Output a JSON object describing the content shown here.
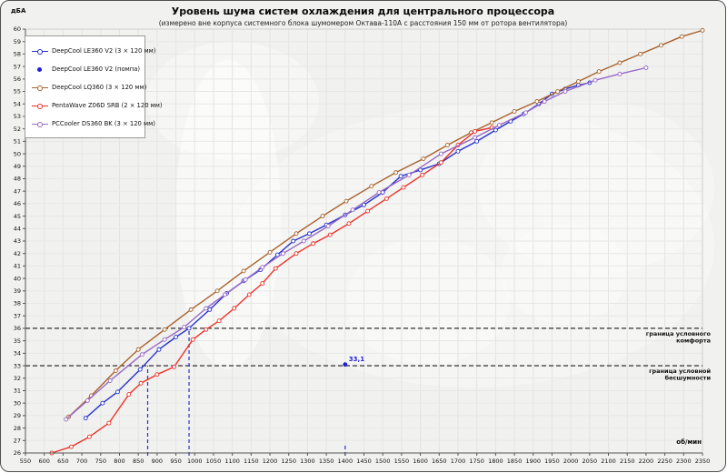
{
  "title": "Уровень шума систем охлаждения для центрального процессора",
  "subtitle": "(измерено вне корпуса системного блока шумомером Октава-110А с расстояния 150 мм от ротора вентилятора)",
  "y_unit": "дБА",
  "x_unit": "об/мин",
  "chart_data": {
    "type": "line",
    "title": "Уровень шума систем охлаждения для центрального процессора",
    "subtitle": "(измерено вне корпуса системного блока шумомером Октава-110А с расстояния 150 мм от ротора вентилятора)",
    "xlabel": "об/мин",
    "ylabel": "дБА",
    "xlim": [
      550,
      2350
    ],
    "xtick_step": 50,
    "ylim": [
      26,
      60
    ],
    "ytick_step": 1,
    "grid": true,
    "legend_position": "top-left",
    "series": [
      {
        "name": "DeepCool LE360 V2 (3 × 120 мм)",
        "type": "line",
        "marker": "circle-open",
        "color": "#2733cb",
        "points": [
          [
            710,
            28.8
          ],
          [
            755,
            30.0
          ],
          [
            795,
            30.9
          ],
          [
            855,
            32.7
          ],
          [
            905,
            34.3
          ],
          [
            950,
            35.3
          ],
          [
            985,
            36.0
          ],
          [
            1040,
            37.5
          ],
          [
            1085,
            38.8
          ],
          [
            1130,
            39.8
          ],
          [
            1175,
            40.7
          ],
          [
            1220,
            41.9
          ],
          [
            1262,
            43.0
          ],
          [
            1305,
            43.6
          ],
          [
            1350,
            44.3
          ],
          [
            1400,
            45.1
          ],
          [
            1450,
            45.9
          ],
          [
            1500,
            46.9
          ],
          [
            1548,
            48.2
          ],
          [
            1600,
            48.7
          ],
          [
            1650,
            49.2
          ],
          [
            1700,
            50.2
          ],
          [
            1750,
            51.0
          ],
          [
            1800,
            51.9
          ],
          [
            1840,
            52.6
          ],
          [
            1875,
            53.2
          ],
          [
            1915,
            54.0
          ],
          [
            1950,
            54.8
          ],
          [
            1985,
            55.2
          ],
          [
            2020,
            55.5
          ],
          [
            2050,
            55.7
          ]
        ]
      },
      {
        "name": "DeepCool LE360 V2 (помпа)",
        "type": "scatter",
        "marker": "dot",
        "color": "#1f1fd6",
        "points": [
          [
            1400,
            33.1
          ]
        ],
        "point_label": "33,1"
      },
      {
        "name": "DeepCool LQ360 (3 × 120 мм)",
        "type": "line",
        "marker": "circle-open",
        "color": "#a8622c",
        "points": [
          [
            665,
            28.9
          ],
          [
            725,
            30.6
          ],
          [
            790,
            32.6
          ],
          [
            850,
            34.3
          ],
          [
            920,
            35.9
          ],
          [
            990,
            37.5
          ],
          [
            1060,
            39.0
          ],
          [
            1130,
            40.6
          ],
          [
            1200,
            42.1
          ],
          [
            1270,
            43.6
          ],
          [
            1340,
            45.0
          ],
          [
            1403,
            46.2
          ],
          [
            1470,
            47.4
          ],
          [
            1535,
            48.5
          ],
          [
            1608,
            49.6
          ],
          [
            1672,
            50.7
          ],
          [
            1735,
            51.7
          ],
          [
            1790,
            52.5
          ],
          [
            1850,
            53.4
          ],
          [
            1910,
            54.2
          ],
          [
            1965,
            55.0
          ],
          [
            2020,
            55.8
          ],
          [
            2075,
            56.6
          ],
          [
            2130,
            57.3
          ],
          [
            2185,
            58.0
          ],
          [
            2240,
            58.7
          ],
          [
            2295,
            59.4
          ],
          [
            2350,
            59.9
          ]
        ]
      },
      {
        "name": "PentaWave Z06D SRB (2 × 120 мм)",
        "type": "line",
        "marker": "circle-open",
        "color": "#ec3229",
        "points": [
          [
            620,
            26.0
          ],
          [
            672,
            26.5
          ],
          [
            720,
            27.3
          ],
          [
            772,
            28.4
          ],
          [
            825,
            30.7
          ],
          [
            857,
            31.6
          ],
          [
            900,
            32.3
          ],
          [
            945,
            32.9
          ],
          [
            995,
            35.1
          ],
          [
            1030,
            35.9
          ],
          [
            1065,
            36.6
          ],
          [
            1105,
            37.6
          ],
          [
            1145,
            38.7
          ],
          [
            1180,
            39.6
          ],
          [
            1215,
            40.8
          ],
          [
            1270,
            42.0
          ],
          [
            1315,
            42.8
          ],
          [
            1360,
            43.5
          ],
          [
            1410,
            44.4
          ],
          [
            1460,
            45.4
          ],
          [
            1510,
            46.4
          ],
          [
            1555,
            47.3
          ],
          [
            1605,
            48.3
          ],
          [
            1655,
            49.3
          ],
          [
            1700,
            50.7
          ],
          [
            1745,
            51.8
          ],
          [
            1790,
            52.1
          ]
        ]
      },
      {
        "name": "PCCooler DS360 BK (3 × 120 мм)",
        "type": "line",
        "marker": "circle-open",
        "color": "#9769c6",
        "points": [
          [
            658,
            28.7
          ],
          [
            715,
            30.2
          ],
          [
            775,
            31.8
          ],
          [
            860,
            33.9
          ],
          [
            920,
            35.1
          ],
          [
            972,
            36.1
          ],
          [
            1030,
            37.6
          ],
          [
            1080,
            38.7
          ],
          [
            1135,
            39.9
          ],
          [
            1180,
            40.9
          ],
          [
            1235,
            42.0
          ],
          [
            1290,
            43.0
          ],
          [
            1355,
            44.2
          ],
          [
            1420,
            45.5
          ],
          [
            1490,
            46.9
          ],
          [
            1570,
            48.3
          ],
          [
            1655,
            50.0
          ],
          [
            1745,
            51.3
          ],
          [
            1810,
            52.3
          ],
          [
            1880,
            53.3
          ],
          [
            1930,
            54.2
          ],
          [
            1985,
            55.0
          ],
          [
            2065,
            55.9
          ],
          [
            2130,
            56.4
          ],
          [
            2200,
            56.9
          ]
        ]
      }
    ],
    "hlines": [
      {
        "y": 36,
        "style": "dashed",
        "color": "#1a1a1a",
        "label": [
          "граница  условного",
          "комфорта"
        ]
      },
      {
        "y": 33,
        "style": "dashed",
        "color": "#1a1a1a",
        "label": [
          "граница  условной",
          "бесшумности"
        ]
      }
    ],
    "vlines": [
      {
        "x": 875,
        "to_y": 33,
        "style": "dashed",
        "color": "#2733cb"
      },
      {
        "x": 985,
        "to_y": 36,
        "style": "dashed",
        "color": "#2733cb"
      },
      {
        "x": 1400,
        "to_y": 26.7,
        "style": "dashed",
        "color": "#2733cb"
      }
    ]
  }
}
